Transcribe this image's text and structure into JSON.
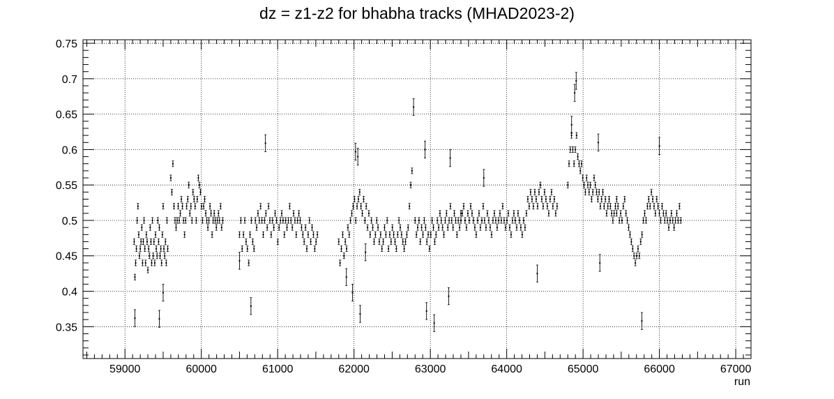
{
  "chart_data": {
    "type": "scatter",
    "title": "dz = z1-z2 for bhabha tracks  (MHAD2023-2)",
    "xlabel": "run",
    "ylabel": "",
    "xlim": [
      58450,
      67200
    ],
    "ylim": [
      0.305,
      0.755
    ],
    "x_ticks": [
      59000,
      60000,
      61000,
      62000,
      63000,
      64000,
      65000,
      66000,
      67000
    ],
    "y_ticks": [
      0.35,
      0.4,
      0.45,
      0.5,
      0.55,
      0.6,
      0.65,
      0.7,
      0.75
    ],
    "x_tick_labels": [
      "59000",
      "60000",
      "61000",
      "62000",
      "63000",
      "64000",
      "65000",
      "66000",
      "67000"
    ],
    "y_tick_labels": [
      "0.35",
      "0.4",
      "0.45",
      "0.5",
      "0.55",
      "0.6",
      "0.65",
      "0.7",
      "0.75"
    ],
    "grid": true,
    "marker_color": "#000000",
    "series": [
      {
        "values_note": "",
        "segments": [
          {
            "x_start": 59120,
            "x_end": 59560,
            "points": [
              0.47,
              0.42,
              0.44,
              0.46,
              0.5,
              0.52,
              0.48,
              0.45,
              0.46,
              0.47,
              0.49,
              0.44,
              0.47,
              0.5,
              0.46,
              0.44,
              0.48,
              0.47,
              0.43,
              0.46,
              0.45,
              0.49,
              0.47,
              0.44,
              0.5,
              0.45,
              0.47,
              0.44,
              0.48,
              0.46,
              0.45,
              0.5,
              0.47,
              0.49,
              0.45,
              0.46,
              0.44,
              0.48,
              0.52,
              0.46,
              0.45,
              0.47,
              0.44,
              0.5,
              0.46
            ]
          },
          {
            "x_start": 59600,
            "x_end": 60280,
            "points": [
              0.56,
              0.54,
              0.58,
              0.52,
              0.5,
              0.49,
              0.5,
              0.52,
              0.5,
              0.51,
              0.53,
              0.52,
              0.5,
              0.48,
              0.5,
              0.52,
              0.53,
              0.55,
              0.51,
              0.52,
              0.5,
              0.54,
              0.53,
              0.52,
              0.5,
              0.53,
              0.56,
              0.55,
              0.54,
              0.52,
              0.5,
              0.52,
              0.53,
              0.51,
              0.5,
              0.49,
              0.5,
              0.52,
              0.51,
              0.48,
              0.5,
              0.51,
              0.5,
              0.49,
              0.5,
              0.51,
              0.5,
              0.52,
              0.49,
              0.5
            ]
          },
          {
            "x_start": 60500,
            "x_end": 61520,
            "points": [
              0.48,
              0.5,
              0.46,
              0.48,
              0.5,
              0.47,
              0.46,
              0.44,
              0.48,
              0.5,
              0.47,
              0.46,
              0.5,
              0.49,
              0.51,
              0.5,
              0.52,
              0.5,
              0.48,
              0.5,
              0.51,
              0.49,
              0.52,
              0.5,
              0.48,
              0.5,
              0.49,
              0.51,
              0.5,
              0.47,
              0.49,
              0.5,
              0.51,
              0.5,
              0.48,
              0.5,
              0.49,
              0.5,
              0.52,
              0.5,
              0.49,
              0.51,
              0.5,
              0.48,
              0.5,
              0.51,
              0.5,
              0.49,
              0.48,
              0.47,
              0.49,
              0.46,
              0.48,
              0.5,
              0.47,
              0.49,
              0.48,
              0.46,
              0.47,
              0.48
            ]
          },
          {
            "x_start": 61800,
            "x_end": 62760,
            "points": [
              0.47,
              0.44,
              0.46,
              0.48,
              0.45,
              0.47,
              0.46,
              0.49,
              0.48,
              0.5,
              0.51,
              0.52,
              0.53,
              0.5,
              0.52,
              0.53,
              0.54,
              0.52,
              0.51,
              0.53,
              0.5,
              0.52,
              0.49,
              0.51,
              0.48,
              0.5,
              0.49,
              0.47,
              0.48,
              0.5,
              0.49,
              0.47,
              0.48,
              0.46,
              0.47,
              0.49,
              0.48,
              0.5,
              0.46,
              0.48,
              0.47,
              0.49,
              0.48,
              0.47,
              0.46,
              0.48,
              0.5,
              0.49,
              0.48,
              0.47,
              0.46,
              0.47,
              0.48,
              0.49,
              0.52,
              0.55,
              0.57
            ]
          },
          {
            "x_start": 62800,
            "x_end": 63400,
            "points": [
              0.5,
              0.48,
              0.49,
              0.5,
              0.47,
              0.49,
              0.48,
              0.5,
              0.49,
              0.47,
              0.48,
              0.46,
              0.48,
              0.5,
              0.49,
              0.47,
              0.48,
              0.5,
              0.49,
              0.51,
              0.5,
              0.49,
              0.48,
              0.5,
              0.51,
              0.49,
              0.5,
              0.52,
              0.5,
              0.49,
              0.51,
              0.5,
              0.48,
              0.5,
              0.49,
              0.51
            ]
          },
          {
            "x_start": 63400,
            "x_end": 64660,
            "points": [
              0.5,
              0.51,
              0.52,
              0.5,
              0.49,
              0.51,
              0.5,
              0.52,
              0.51,
              0.5,
              0.49,
              0.48,
              0.5,
              0.51,
              0.49,
              0.5,
              0.52,
              0.5,
              0.49,
              0.51,
              0.5,
              0.49,
              0.48,
              0.5,
              0.51,
              0.5,
              0.49,
              0.5,
              0.51,
              0.5,
              0.52,
              0.5,
              0.49,
              0.5,
              0.51,
              0.49,
              0.48,
              0.5,
              0.51,
              0.5,
              0.49,
              0.51,
              0.5,
              0.49,
              0.48,
              0.5,
              0.49,
              0.51,
              0.53,
              0.52,
              0.54,
              0.53,
              0.52,
              0.54,
              0.53,
              0.52,
              0.54,
              0.55,
              0.53,
              0.52,
              0.54,
              0.53,
              0.52,
              0.51,
              0.53,
              0.54,
              0.52,
              0.53,
              0.51,
              0.52
            ]
          },
          {
            "x_start": 64800,
            "x_end": 65440,
            "points": [
              0.55,
              0.58,
              0.6,
              0.62,
              0.6,
              0.58,
              0.6,
              0.62,
              0.59,
              0.58,
              0.57,
              0.58,
              0.56,
              0.55,
              0.54,
              0.56,
              0.55,
              0.54,
              0.55,
              0.53,
              0.54,
              0.56,
              0.55,
              0.54,
              0.53,
              0.54,
              0.52,
              0.53,
              0.54,
              0.52,
              0.53,
              0.51,
              0.52,
              0.53,
              0.52,
              0.51,
              0.5,
              0.51,
              0.52,
              0.53
            ]
          },
          {
            "x_start": 65440,
            "x_end": 66280,
            "points": [
              0.51,
              0.52,
              0.5,
              0.51,
              0.5,
              0.52,
              0.53,
              0.51,
              0.5,
              0.49,
              0.48,
              0.47,
              0.46,
              0.45,
              0.44,
              0.45,
              0.46,
              0.45,
              0.47,
              0.48,
              0.5,
              0.51,
              0.5,
              0.52,
              0.53,
              0.52,
              0.54,
              0.53,
              0.52,
              0.51,
              0.53,
              0.52,
              0.51,
              0.5,
              0.52,
              0.51,
              0.5,
              0.51,
              0.5,
              0.49,
              0.5,
              0.51,
              0.5,
              0.49,
              0.5,
              0.51,
              0.5,
              0.52,
              0.5
            ]
          }
        ],
        "outliers": [
          {
            "x": 59130,
            "y": 0.362
          },
          {
            "x": 59450,
            "y": 0.361
          },
          {
            "x": 59500,
            "y": 0.398
          },
          {
            "x": 60650,
            "y": 0.379
          },
          {
            "x": 60840,
            "y": 0.609
          },
          {
            "x": 61980,
            "y": 0.398
          },
          {
            "x": 62020,
            "y": 0.597
          },
          {
            "x": 62050,
            "y": 0.59
          },
          {
            "x": 62080,
            "y": 0.368
          },
          {
            "x": 62780,
            "y": 0.66
          },
          {
            "x": 62950,
            "y": 0.372
          },
          {
            "x": 63050,
            "y": 0.355
          },
          {
            "x": 63240,
            "y": 0.393
          },
          {
            "x": 63260,
            "y": 0.588
          },
          {
            "x": 62930,
            "y": 0.6
          },
          {
            "x": 64910,
            "y": 0.697
          },
          {
            "x": 64890,
            "y": 0.68
          },
          {
            "x": 65200,
            "y": 0.61
          },
          {
            "x": 65220,
            "y": 0.44
          },
          {
            "x": 65770,
            "y": 0.358
          },
          {
            "x": 66000,
            "y": 0.605
          },
          {
            "x": 64850,
            "y": 0.635
          },
          {
            "x": 60500,
            "y": 0.443
          },
          {
            "x": 61900,
            "y": 0.42
          },
          {
            "x": 62150,
            "y": 0.455
          },
          {
            "x": 63700,
            "y": 0.56
          },
          {
            "x": 64400,
            "y": 0.425
          }
        ],
        "error_halfwidth": 0.004
      }
    ]
  }
}
